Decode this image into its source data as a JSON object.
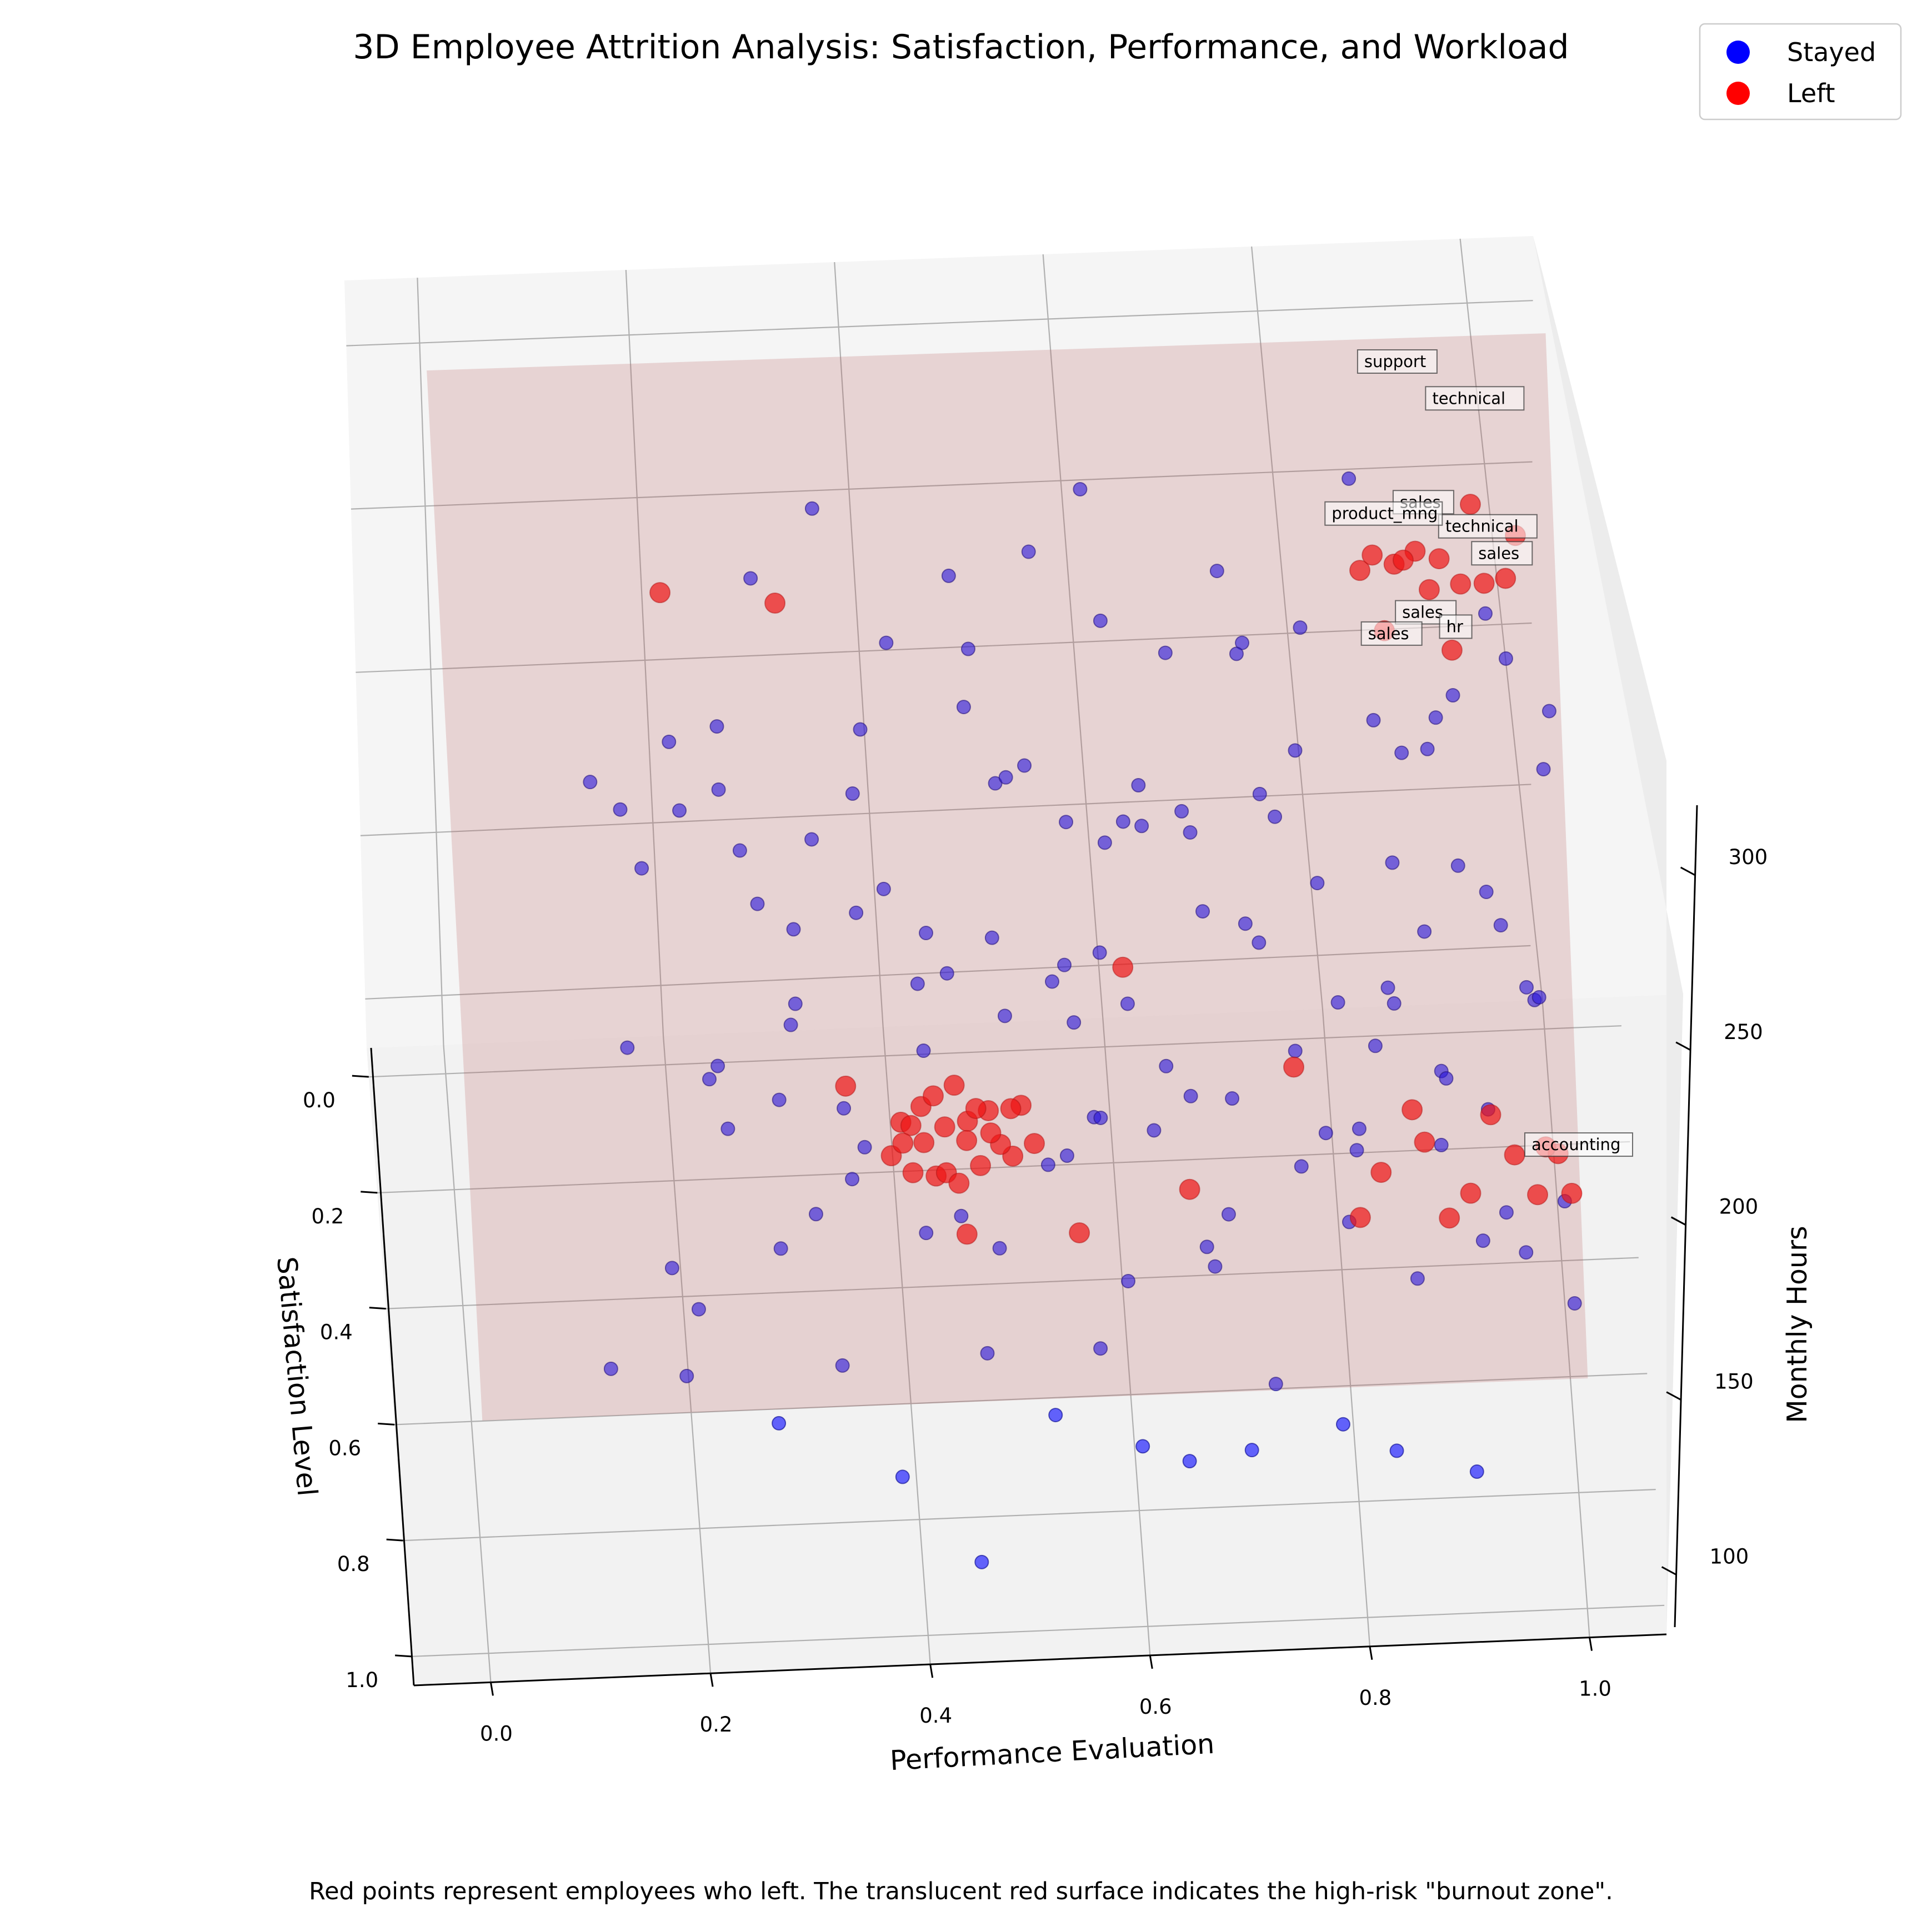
{
  "chart_data": {
    "type": "scatter",
    "subtype": "3d-scatter",
    "title": "3D Employee Attrition Analysis: Satisfaction, Performance, and Workload",
    "caption": "Red points represent employees who left. The translucent red surface indicates the high-risk \"burnout zone\".",
    "axes": {
      "x": {
        "label": "Performance Evaluation",
        "ticks": [
          "0.0",
          "0.2",
          "0.4",
          "0.6",
          "0.8",
          "1.0"
        ],
        "range": [
          -0.07,
          1.07
        ]
      },
      "y": {
        "label": "Satisfaction Level",
        "ticks": [
          "0.0",
          "0.2",
          "0.4",
          "0.6",
          "0.8",
          "1.0"
        ],
        "range": [
          -0.05,
          1.05
        ]
      },
      "z": {
        "label": "Monthly Hours",
        "ticks": [
          "100",
          "150",
          "200",
          "250",
          "300"
        ],
        "range": [
          85,
          320
        ]
      }
    },
    "grid": true,
    "legend": {
      "placement": "top-right",
      "entries": [
        {
          "label": "Stayed",
          "color": "#0000ff"
        },
        {
          "label": "Left",
          "color": "#ff0000"
        }
      ]
    },
    "burnout_surface": {
      "color": "#b45a5a",
      "description_source": "caption",
      "corners": [
        {
          "x": 0.0,
          "y": 0.0,
          "z": 305
        },
        {
          "x": 1.0,
          "y": 0.0,
          "z": 305
        },
        {
          "x": 1.0,
          "y": 1.0,
          "z": 210
        },
        {
          "x": 0.0,
          "y": 1.0,
          "z": 210
        }
      ]
    },
    "series": [
      {
        "name": "Stayed",
        "color": "#0000ff",
        "points_estimated": [
          [
            0.21,
            0.27,
            230
          ],
          [
            0.33,
            0.22,
            205
          ],
          [
            0.47,
            0.18,
            238
          ],
          [
            0.52,
            0.3,
            250
          ],
          [
            0.61,
            0.25,
            215
          ],
          [
            0.72,
            0.2,
            262
          ],
          [
            0.86,
            0.28,
            244
          ],
          [
            0.91,
            0.18,
            236
          ],
          [
            0.26,
            0.4,
            252
          ],
          [
            0.39,
            0.36,
            224
          ],
          [
            0.55,
            0.42,
            210
          ],
          [
            0.66,
            0.33,
            240
          ],
          [
            0.78,
            0.38,
            226
          ],
          [
            0.93,
            0.44,
            238
          ],
          [
            0.3,
            0.5,
            214
          ],
          [
            0.44,
            0.55,
            248
          ],
          [
            0.58,
            0.48,
            232
          ],
          [
            0.71,
            0.52,
            254
          ],
          [
            0.84,
            0.47,
            211
          ],
          [
            0.97,
            0.53,
            222
          ],
          [
            0.23,
            0.62,
            236
          ],
          [
            0.36,
            0.66,
            212
          ],
          [
            0.49,
            0.6,
            246
          ],
          [
            0.62,
            0.7,
            228
          ],
          [
            0.75,
            0.64,
            240
          ],
          [
            0.88,
            0.68,
            210
          ],
          [
            0.28,
            0.75,
            198
          ],
          [
            0.41,
            0.8,
            220
          ],
          [
            0.54,
            0.74,
            232
          ],
          [
            0.67,
            0.82,
            206
          ],
          [
            0.8,
            0.78,
            244
          ],
          [
            0.95,
            0.85,
            218
          ],
          [
            0.33,
            0.88,
            186
          ],
          [
            0.46,
            0.92,
            204
          ],
          [
            0.59,
            0.86,
            215
          ],
          [
            0.72,
            0.94,
            190
          ],
          [
            0.85,
            0.9,
            226
          ],
          [
            0.19,
            0.84,
            170
          ],
          [
            0.27,
            0.93,
            176
          ],
          [
            0.38,
            0.97,
            160
          ],
          [
            0.52,
            0.95,
            182
          ],
          [
            0.64,
            0.98,
            166
          ],
          [
            0.78,
            0.96,
            175
          ],
          [
            0.9,
            0.99,
            158
          ],
          [
            0.45,
            0.99,
            120
          ],
          [
            0.6,
            0.91,
            150
          ],
          [
            0.83,
            0.92,
            146
          ],
          [
            0.7,
            0.88,
            136
          ],
          [
            0.24,
            0.55,
            188
          ],
          [
            0.35,
            0.6,
            180
          ],
          [
            0.48,
            0.68,
            172
          ],
          [
            0.57,
            0.58,
            196
          ],
          [
            0.69,
            0.61,
            162
          ],
          [
            0.81,
            0.57,
            184
          ],
          [
            0.94,
            0.65,
            170
          ],
          [
            0.99,
            0.72,
            196
          ],
          [
            0.29,
            0.44,
            168
          ],
          [
            0.42,
            0.48,
            196
          ],
          [
            0.53,
            0.52,
            160
          ],
          [
            0.64,
            0.45,
            178
          ],
          [
            0.76,
            0.5,
            150
          ],
          [
            0.89,
            0.42,
            164
          ],
          [
            0.98,
            0.38,
            180
          ],
          [
            0.31,
            0.31,
            170
          ],
          [
            0.43,
            0.28,
            186
          ],
          [
            0.56,
            0.36,
            172
          ],
          [
            0.68,
            0.28,
            190
          ],
          [
            0.8,
            0.33,
            168
          ],
          [
            0.95,
            0.26,
            176
          ],
          [
            0.37,
            0.14,
            200
          ],
          [
            0.5,
            0.1,
            192
          ],
          [
            0.63,
            0.15,
            188
          ],
          [
            0.77,
            0.12,
            204
          ],
          [
            0.89,
            0.1,
            198
          ],
          [
            0.25,
            0.1,
            214
          ],
          [
            0.6,
            0.05,
            160
          ],
          [
            0.74,
            0.06,
            176
          ],
          [
            0.86,
            0.05,
            150
          ],
          [
            0.34,
            0.07,
            276
          ],
          [
            0.46,
            0.12,
            266
          ],
          [
            0.58,
            0.08,
            282
          ],
          [
            0.7,
            0.14,
            270
          ],
          [
            0.82,
            0.1,
            288
          ],
          [
            0.94,
            0.16,
            258
          ],
          [
            0.4,
            0.22,
            272
          ],
          [
            0.53,
            0.18,
            290
          ],
          [
            0.65,
            0.23,
            268
          ],
          [
            0.77,
            0.26,
            284
          ],
          [
            0.89,
            0.3,
            262
          ],
          [
            0.99,
            0.35,
            278
          ],
          [
            0.2,
            0.34,
            275
          ],
          [
            0.28,
            0.2,
            290
          ],
          [
            0.17,
            0.45,
            262
          ],
          [
            0.5,
            0.4,
            276
          ],
          [
            0.62,
            0.37,
            262
          ],
          [
            0.74,
            0.44,
            270
          ],
          [
            0.87,
            0.55,
            258
          ],
          [
            0.36,
            0.52,
            264
          ],
          [
            0.48,
            0.58,
            272
          ],
          [
            0.6,
            0.62,
            256
          ],
          [
            0.72,
            0.58,
            266
          ],
          [
            0.84,
            0.62,
            252
          ],
          [
            0.96,
            0.6,
            250
          ],
          [
            0.22,
            0.7,
            258
          ],
          [
            0.34,
            0.72,
            250
          ],
          [
            0.57,
            0.76,
            256
          ],
          [
            0.69,
            0.72,
            248
          ],
          [
            0.82,
            0.7,
            262
          ],
          [
            0.92,
            0.74,
            246
          ],
          [
            0.31,
            0.83,
            242
          ],
          [
            0.44,
            0.86,
            250
          ],
          [
            0.66,
            0.9,
            246
          ],
          [
            0.79,
            0.86,
            240
          ],
          [
            0.91,
            0.88,
            236
          ],
          [
            0.2,
            0.92,
            232
          ],
          [
            0.56,
            0.99,
            232
          ],
          [
            0.99,
            0.95,
            230
          ],
          [
            0.15,
            0.58,
            232
          ],
          [
            0.18,
            0.8,
            208
          ],
          [
            0.12,
            0.9,
            196
          ],
          [
            0.96,
            0.12,
            232
          ],
          [
            0.99,
            0.22,
            220
          ],
          [
            0.13,
            0.28,
            244
          ],
          [
            0.16,
            0.15,
            200
          ],
          [
            0.27,
            0.57,
            286
          ],
          [
            0.41,
            0.66,
            282
          ],
          [
            0.53,
            0.69,
            292
          ],
          [
            0.65,
            0.8,
            280
          ],
          [
            0.77,
            0.84,
            276
          ],
          [
            0.88,
            0.8,
            284
          ],
          [
            0.24,
            0.47,
            298
          ],
          [
            0.47,
            0.33,
            302
          ],
          [
            0.59,
            0.29,
            298
          ],
          [
            0.71,
            0.34,
            300
          ],
          [
            0.83,
            0.41,
            296
          ],
          [
            0.37,
            0.4,
            296
          ],
          [
            0.3,
            0.64,
            300
          ],
          [
            0.55,
            0.51,
            294
          ],
          [
            0.66,
            0.55,
            302
          ],
          [
            0.9,
            0.56,
            288
          ]
        ]
      },
      {
        "name": "Left",
        "color": "#ff0000",
        "points_estimated": [
          [
            0.4,
            0.43,
            155
          ],
          [
            0.42,
            0.45,
            152
          ],
          [
            0.44,
            0.42,
            150
          ],
          [
            0.46,
            0.44,
            157
          ],
          [
            0.48,
            0.41,
            153
          ],
          [
            0.5,
            0.46,
            148
          ],
          [
            0.41,
            0.4,
            146
          ],
          [
            0.43,
            0.47,
            144
          ],
          [
            0.45,
            0.39,
            158
          ],
          [
            0.47,
            0.48,
            150
          ],
          [
            0.49,
            0.43,
            145
          ],
          [
            0.51,
            0.4,
            152
          ],
          [
            0.39,
            0.46,
            150
          ],
          [
            0.44,
            0.45,
            140
          ],
          [
            0.46,
            0.41,
            142
          ],
          [
            0.48,
            0.47,
            160
          ],
          [
            0.42,
            0.38,
            148
          ],
          [
            0.5,
            0.42,
            156
          ],
          [
            0.45,
            0.49,
            146
          ],
          [
            0.4,
            0.48,
            160
          ],
          [
            0.47,
            0.37,
            144
          ],
          [
            0.52,
            0.45,
            150
          ],
          [
            0.43,
            0.42,
            162
          ],
          [
            0.41,
            0.44,
            138
          ],
          [
            0.83,
            0.09,
            255
          ],
          [
            0.86,
            0.11,
            262
          ],
          [
            0.88,
            0.08,
            258
          ],
          [
            0.9,
            0.12,
            266
          ],
          [
            0.92,
            0.1,
            252
          ],
          [
            0.94,
            0.13,
            260
          ],
          [
            0.85,
            0.14,
            248
          ],
          [
            0.89,
            0.15,
            264
          ],
          [
            0.93,
            0.07,
            270
          ],
          [
            0.96,
            0.11,
            256
          ],
          [
            0.87,
            0.06,
            250
          ],
          [
            0.91,
            0.16,
            246
          ],
          [
            0.97,
            0.08,
            262
          ],
          [
            0.84,
            0.12,
            268
          ],
          [
            0.82,
            0.83,
            252
          ],
          [
            0.86,
            0.81,
            258
          ],
          [
            0.9,
            0.85,
            248
          ],
          [
            0.94,
            0.84,
            262
          ],
          [
            0.98,
            0.82,
            254
          ],
          [
            0.88,
            0.87,
            244
          ],
          [
            0.92,
            0.8,
            266
          ],
          [
            0.96,
            0.86,
            250
          ],
          [
            0.99,
            0.88,
            258
          ],
          [
            0.85,
            0.78,
            262
          ],
          [
            0.8,
            0.86,
            242
          ],
          [
            0.97,
            0.79,
            246
          ],
          [
            0.2,
            0.15,
            272
          ],
          [
            0.3,
            0.25,
            296
          ],
          [
            0.6,
            0.5,
            232
          ],
          [
            0.55,
            0.75,
            200
          ],
          [
            0.35,
            0.45,
            175
          ],
          [
            0.75,
            0.6,
            220
          ],
          [
            0.65,
            0.75,
            218
          ],
          [
            0.45,
            0.7,
            185
          ]
        ]
      }
    ],
    "annotations": [
      {
        "label": "support",
        "x": 0.83,
        "y": 0.05,
        "z": 310
      },
      {
        "label": "technical",
        "x": 0.89,
        "y": 0.07,
        "z": 303
      },
      {
        "label": "sales",
        "x": 0.86,
        "y": 0.09,
        "z": 275
      },
      {
        "label": "technical",
        "x": 0.9,
        "y": 0.11,
        "z": 272
      },
      {
        "label": "product_mng",
        "x": 0.8,
        "y": 0.06,
        "z": 264
      },
      {
        "label": "sales",
        "x": 0.93,
        "y": 0.1,
        "z": 260
      },
      {
        "label": "sales",
        "x": 0.86,
        "y": 0.14,
        "z": 252
      },
      {
        "label": "hr",
        "x": 0.9,
        "y": 0.13,
        "z": 244
      },
      {
        "label": "sales",
        "x": 0.83,
        "y": 0.12,
        "z": 240
      },
      {
        "label": "accounting",
        "x": 0.95,
        "y": 0.82,
        "z": 256
      }
    ]
  }
}
